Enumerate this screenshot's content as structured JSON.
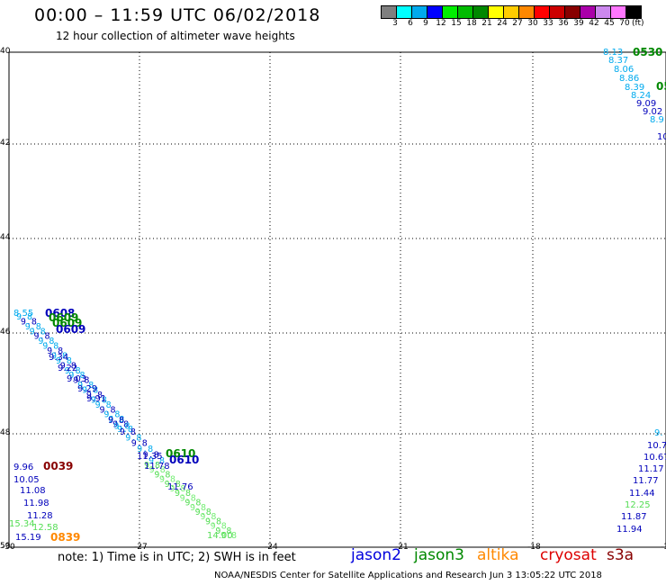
{
  "title": "00:00 – 11:59 UTC 06/02/2018",
  "subtitle": "12 hour collection of altimeter wave heights",
  "legend": {
    "colors": [
      "#7f7f7f",
      "#00ffff",
      "#00aaee",
      "#0000ff",
      "#00ee00",
      "#00bb00",
      "#008800",
      "#ffff00",
      "#ffcc00",
      "#ff8800",
      "#ff0000",
      "#cc0000",
      "#880000",
      "#aa00aa",
      "#cc88ee",
      "#ff77ff",
      "#000000"
    ],
    "labels": [
      "3",
      "6",
      "9",
      "12",
      "15",
      "18",
      "21",
      "24",
      "27",
      "30",
      "33",
      "36",
      "39",
      "42",
      "45",
      "70"
    ],
    "unit": "(ft)"
  },
  "lat_labels": [
    "40",
    "42",
    "44",
    "46",
    "48",
    "50"
  ],
  "lon_labels": [
    "-30",
    "-27",
    "-24",
    "-21",
    "-18",
    "-15"
  ],
  "note": "note:  1) Time is in UTC;  2) SWH is in feet",
  "satellites": [
    {
      "name": "jason2",
      "color": "#0000dd"
    },
    {
      "name": "jason3",
      "color": "#008800"
    },
    {
      "name": "altika",
      "color": "#ff8800"
    },
    {
      "name": "cryosat",
      "color": "#dd0000"
    },
    {
      "name": "s3a",
      "color": "#880000"
    }
  ],
  "credit": "NOAA/NESDIS Center for Satellite Applications and Research    Jun  3 13:05:22 UTC 2018",
  "time_labels": [
    {
      "text": "0530",
      "color": "#008800"
    },
    {
      "text": "05",
      "color": "#008800"
    },
    {
      "text": "0608",
      "color": "#0000bb"
    },
    {
      "text": "0609",
      "color": "#008800"
    },
    {
      "text": "0609",
      "color": "#008800"
    },
    {
      "text": "0609",
      "color": "#0000bb"
    },
    {
      "text": "0610",
      "color": "#008800"
    },
    {
      "text": "0610",
      "color": "#0000bb"
    },
    {
      "text": "0039",
      "color": "#880000"
    },
    {
      "text": "0839",
      "color": "#ff8800"
    }
  ],
  "swh_values": [
    {
      "text": "8.13",
      "color": "#00aaee"
    },
    {
      "text": "8.37",
      "color": "#00aaee"
    },
    {
      "text": "8.06",
      "color": "#00aaee"
    },
    {
      "text": "8.86",
      "color": "#00aaee"
    },
    {
      "text": "8.39",
      "color": "#00aaee"
    },
    {
      "text": "8.24",
      "color": "#00aaee"
    },
    {
      "text": "9.09",
      "color": "#0000bb"
    },
    {
      "text": "9.02",
      "color": "#0000bb"
    },
    {
      "text": "8.9",
      "color": "#00aaee"
    },
    {
      "text": "10",
      "color": "#0000bb"
    },
    {
      "text": "8.55",
      "color": "#00aaee"
    },
    {
      "text": "9.34",
      "color": "#0000bb"
    },
    {
      "text": "9.22",
      "color": "#0000bb"
    },
    {
      "text": "9.03",
      "color": "#0000bb"
    },
    {
      "text": "9.29",
      "color": "#0000bb"
    },
    {
      "text": "9.91",
      "color": "#0000bb"
    },
    {
      "text": "11.35",
      "color": "#0000bb"
    },
    {
      "text": "11.78",
      "color": "#0000bb"
    },
    {
      "text": "11.76",
      "color": "#0000bb"
    },
    {
      "text": "14.00",
      "color": "#55dd55"
    },
    {
      "text": "9.96",
      "color": "#0000bb"
    },
    {
      "text": "10.05",
      "color": "#0000bb"
    },
    {
      "text": "11.08",
      "color": "#0000bb"
    },
    {
      "text": "11.98",
      "color": "#0000bb"
    },
    {
      "text": "11.28",
      "color": "#0000bb"
    },
    {
      "text": "15.34",
      "color": "#55dd55"
    },
    {
      "text": "12.58",
      "color": "#55dd55"
    },
    {
      "text": "15.19",
      "color": "#0000bb"
    },
    {
      "text": "9.",
      "color": "#00aaee"
    },
    {
      "text": "10.7",
      "color": "#0000bb"
    },
    {
      "text": "10.67",
      "color": "#0000bb"
    },
    {
      "text": "11.17",
      "color": "#0000bb"
    },
    {
      "text": "11.77",
      "color": "#0000bb"
    },
    {
      "text": "11.44",
      "color": "#0000bb"
    },
    {
      "text": "12.25",
      "color": "#55dd55"
    },
    {
      "text": "11.87",
      "color": "#0000bb"
    },
    {
      "text": "11.94",
      "color": "#0000bb"
    }
  ]
}
